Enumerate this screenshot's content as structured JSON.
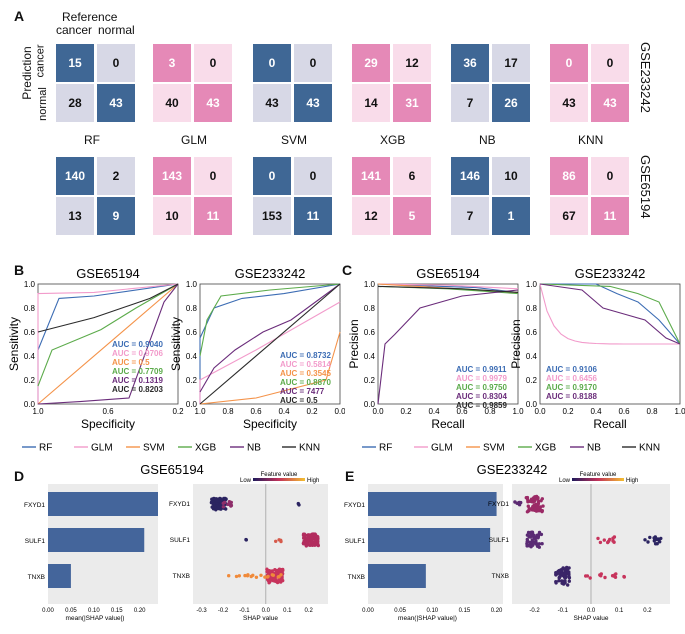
{
  "panel_labels": {
    "a": "A",
    "b": "B",
    "c": "C",
    "d": "D",
    "e": "E"
  },
  "panel_a": {
    "reference_label": "Reference",
    "prediction_label": "Prediction",
    "class_cancer": "cancer",
    "class_normal": "normal",
    "models": [
      "RF",
      "GLM",
      "SVM",
      "XGB",
      "NB",
      "KNN"
    ],
    "datasets": [
      "GSE233242",
      "GSE65194"
    ],
    "colors": {
      "blue_dark": "#3f6795",
      "blue_light": "#d7d8e6",
      "pink_dark": "#e589b7",
      "pink_light": "#f9dcea"
    },
    "chart_data": {
      "type": "table",
      "title": "Confusion matrices",
      "GSE233242": [
        {
          "model": "RF",
          "tp": 15,
          "fp": 0,
          "fn": 28,
          "tn": 43
        },
        {
          "model": "GLM",
          "tp": 3,
          "fp": 0,
          "fn": 40,
          "tn": 43
        },
        {
          "model": "SVM",
          "tp": 0,
          "fp": 0,
          "fn": 43,
          "tn": 43
        },
        {
          "model": "XGB",
          "tp": 29,
          "fp": 12,
          "fn": 14,
          "tn": 31
        },
        {
          "model": "NB",
          "tp": 36,
          "fp": 17,
          "fn": 7,
          "tn": 26
        },
        {
          "model": "KNN",
          "tp": 0,
          "fp": 0,
          "fn": 43,
          "tn": 43
        }
      ],
      "GSE65194": [
        {
          "model": "RF",
          "tp": 140,
          "fp": 2,
          "fn": 13,
          "tn": 9
        },
        {
          "model": "GLM",
          "tp": 143,
          "fp": 0,
          "fn": 10,
          "tn": 11
        },
        {
          "model": "SVM",
          "tp": 0,
          "fp": 0,
          "fn": 153,
          "tn": 11
        },
        {
          "model": "XGB",
          "tp": 141,
          "fp": 6,
          "fn": 12,
          "tn": 5
        },
        {
          "model": "NB",
          "tp": 146,
          "fp": 10,
          "fn": 7,
          "tn": 1
        },
        {
          "model": "KNN",
          "tp": 86,
          "fp": 0,
          "fn": 67,
          "tn": 11
        }
      ]
    }
  },
  "series_colors": {
    "RF": "#3d6db4",
    "GLM": "#f29bcb",
    "SVM": "#f4934a",
    "XGB": "#5cab4b",
    "NB": "#6b2d7b",
    "KNN": "#2b2b2b"
  },
  "legend_labels": [
    "RF",
    "GLM",
    "SVM",
    "XGB",
    "NB",
    "KNN"
  ],
  "panel_b": {
    "charts": [
      {
        "title": "GSE65194",
        "xlabel": "Specificity",
        "ylabel": "Sensitivity",
        "auc_prefix": "AUC = ",
        "auc": [
          "0.9040",
          "0.9706",
          "0.5",
          "0.7709",
          "0.1319",
          "0.8203"
        ],
        "xticks": [
          "1.0",
          "0.6",
          "0.2"
        ],
        "yticks": [
          "0.0",
          "0.2",
          "0.4",
          "0.6",
          "0.8",
          "1.0"
        ]
      },
      {
        "title": "GSE233242",
        "xlabel": "Specificity",
        "ylabel": "Sensitivity",
        "auc_prefix": "AUC = ",
        "auc": [
          "0.8732",
          "0.5814",
          "0.3545",
          "0.8870",
          "7477",
          "0.5"
        ],
        "xticks": [
          "1.0",
          "0.8",
          "0.6",
          "0.4",
          "0.2",
          "0.0"
        ],
        "yticks": [
          "0.0",
          "0.2",
          "0.4",
          "0.6",
          "0.8",
          "1.0"
        ]
      }
    ]
  },
  "panel_c": {
    "charts": [
      {
        "title": "GSE65194",
        "xlabel": "Recall",
        "ylabel": "Precision",
        "auc_prefix": "AUC = ",
        "auc": [
          "0.9911",
          "0.9979",
          "0.9750",
          "0.8304",
          "0.9859"
        ],
        "xticks": [
          "0.0",
          "0.2",
          "0.4",
          "0.6",
          "0.8",
          "1.0"
        ],
        "yticks": [
          "0.0",
          "0.2",
          "0.4",
          "0.6",
          "0.8",
          "1.0"
        ]
      },
      {
        "title": "GSE233242",
        "xlabel": "Recall",
        "ylabel": "Precision",
        "auc_prefix": "AUC = ",
        "auc": [
          "0.9106",
          "0.6456",
          "0.9170",
          "0.8188"
        ],
        "xticks": [
          "0.0",
          "0.2",
          "0.4",
          "0.6",
          "0.8",
          "1.0"
        ],
        "yticks": [
          "0.0",
          "0.2",
          "0.4",
          "0.6",
          "0.8",
          "1.0"
        ]
      }
    ]
  },
  "panel_d": {
    "title": "GSE65194",
    "features": [
      "FXYD1",
      "SULF1",
      "TNXB"
    ],
    "bar_xlabel": "mean(|SHAP value|)",
    "bar_xticks": [
      "0.00",
      "0.05",
      "0.10",
      "0.15",
      "0.20"
    ],
    "chart_data": {
      "type": "bar",
      "categories": [
        "FXYD1",
        "SULF1",
        "TNXB"
      ],
      "values": [
        0.24,
        0.21,
        0.05
      ],
      "xlabel": "mean(|SHAP value|)",
      "xlim": [
        0,
        0.25
      ]
    },
    "beeswarm_xlabel": "SHAP value",
    "beeswarm_xticks": [
      "-0.3",
      "-0.2",
      "-0.1",
      "0.0",
      "0.1",
      "0.2"
    ],
    "legend_title": "Feature value",
    "legend_low": "Low",
    "legend_high": "High"
  },
  "panel_e": {
    "title": "GSE233242",
    "features": [
      "FXYD1",
      "SULF1",
      "TNXB"
    ],
    "bar_xlabel": "mean(|SHAP value|)",
    "bar_xticks": [
      "0.00",
      "0.05",
      "0.10",
      "0.15",
      "0.20"
    ],
    "chart_data": {
      "type": "bar",
      "categories": [
        "FXYD1",
        "SULF1",
        "TNXB"
      ],
      "values": [
        0.2,
        0.19,
        0.09
      ],
      "xlabel": "mean(|SHAP value|)",
      "xlim": [
        0,
        0.21
      ]
    },
    "beeswarm_xlabel": "SHAP value",
    "beeswarm_xticks": [
      "-0.2",
      "-0.1",
      "0.0",
      "0.1",
      "0.2"
    ],
    "legend_title": "Feature value",
    "legend_low": "Low",
    "legend_high": "High"
  }
}
